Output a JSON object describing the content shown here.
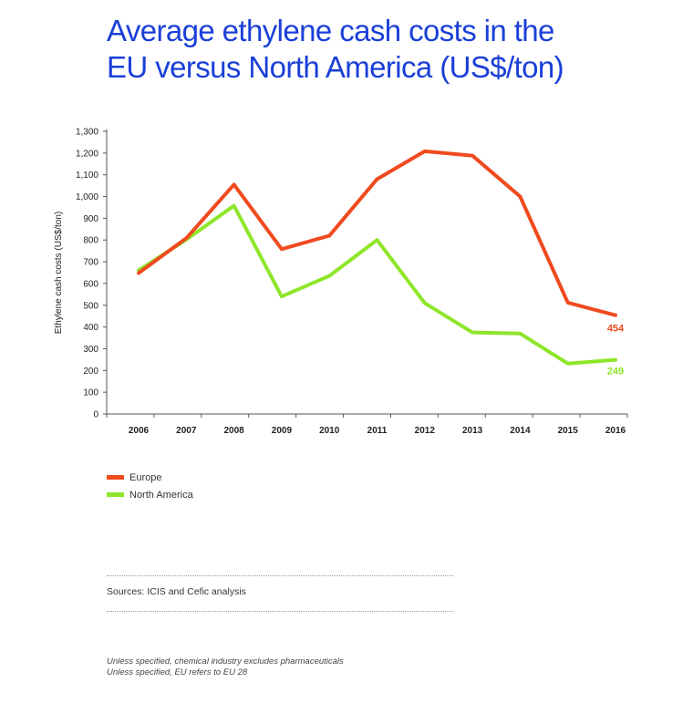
{
  "title_line1": "Average ethylene cash costs in the",
  "title_line2": "EU versus North America (US$/ton)",
  "chart_data": {
    "type": "line",
    "title": "Average ethylene cash costs in the EU versus North America (US$/ton)",
    "xlabel": "",
    "ylabel": "Ethylene cash costs (US$/ton)",
    "x": [
      "2006",
      "2007",
      "2008",
      "2009",
      "2010",
      "2011",
      "2012",
      "2013",
      "2014",
      "2015",
      "2016"
    ],
    "ylim": [
      0,
      1300
    ],
    "yticks": [
      0,
      100,
      200,
      300,
      400,
      500,
      600,
      700,
      800,
      900,
      1000,
      1100,
      1200,
      1300
    ],
    "ytick_labels": [
      "0",
      "100",
      "200",
      "300",
      "400",
      "500",
      "600",
      "700",
      "800",
      "900",
      "1,000",
      "1,100",
      "1,200",
      "1,300"
    ],
    "grid": false,
    "legend_position": "bottom-left",
    "series": [
      {
        "name": "Europe",
        "color": "#f04a1f",
        "values": [
          648,
          808,
          1055,
          758,
          820,
          1080,
          1208,
          1188,
          1000,
          512,
          454
        ],
        "end_label": "454"
      },
      {
        "name": "North America",
        "color": "#8ee62b",
        "values": [
          660,
          802,
          958,
          540,
          635,
          800,
          510,
          375,
          370,
          232,
          249
        ],
        "end_label": "249"
      }
    ]
  },
  "legend": [
    {
      "label": "Europe",
      "color": "#f04a1f"
    },
    {
      "label": "North America",
      "color": "#8ee62b"
    }
  ],
  "sources": "Sources: ICIS and Cefic analysis",
  "notes": [
    "Unless specified, chemical industry excludes pharmaceuticals",
    "Unless specified, EU refers to EU 28"
  ]
}
